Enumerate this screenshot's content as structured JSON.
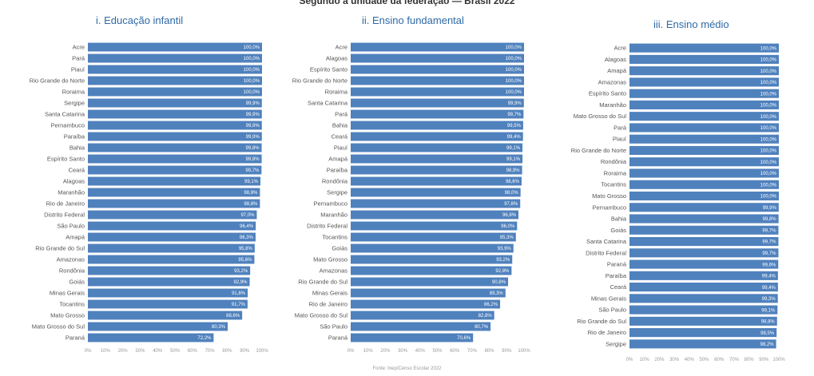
{
  "page": {
    "top_title": "Segundo a unidade da federação — Brasil 2022",
    "footer": "Fonte: Inep/Censo Escolar 2022"
  },
  "colors": {
    "bar": "#4f81bd",
    "label": "#555555",
    "title": "#2f6aa6",
    "value_text": "#ffffff"
  },
  "chart_data": [
    {
      "type": "bar",
      "orientation": "horizontal",
      "title": "i. Educação infantil",
      "xlim": [
        0,
        100
      ],
      "x_ticks": [
        "0%",
        "10%",
        "20%",
        "30%",
        "40%",
        "50%",
        "60%",
        "70%",
        "80%",
        "90%",
        "100%"
      ],
      "categories": [
        "Acre",
        "Pará",
        "Piauí",
        "Rio Grande do Norte",
        "Roraima",
        "Sergipe",
        "Santa Catarina",
        "Pernambuco",
        "Paraíba",
        "Bahia",
        "Espírito Santo",
        "Ceará",
        "Alagoas",
        "Maranhão",
        "Rio de Janeiro",
        "Distrito Federal",
        "São Paulo",
        "Amapá",
        "Rio Grande do Sul",
        "Amazonas",
        "Rondônia",
        "Goiás",
        "Minas Gerais",
        "Tocantins",
        "Mato Grosso",
        "Mato Grosso do Sul",
        "Paraná"
      ],
      "values": [
        100.0,
        100.0,
        100.0,
        100.0,
        100.0,
        99.9,
        99.9,
        99.9,
        99.9,
        99.8,
        99.8,
        99.7,
        99.1,
        98.8,
        98.8,
        97.0,
        96.4,
        96.3,
        95.8,
        95.6,
        93.2,
        92.9,
        91.8,
        91.7,
        88.6,
        80.3,
        72.2
      ],
      "labels": [
        "100,0%",
        "100,0%",
        "100,0%",
        "100,0%",
        "100,0%",
        "99,9%",
        "99,9%",
        "99,9%",
        "99,9%",
        "99,8%",
        "99,8%",
        "99,7%",
        "99,1%",
        "98,8%",
        "98,8%",
        "97,0%",
        "96,4%",
        "96,3%",
        "95,8%",
        "95,6%",
        "93,2%",
        "92,9%",
        "91,8%",
        "91,7%",
        "88,6%",
        "80,3%",
        "72,2%"
      ]
    },
    {
      "type": "bar",
      "orientation": "horizontal",
      "title": "ii. Ensino fundamental",
      "xlim": [
        0,
        100
      ],
      "x_ticks": [
        "0%",
        "10%",
        "20%",
        "30%",
        "40%",
        "50%",
        "60%",
        "70%",
        "80%",
        "90%",
        "100%"
      ],
      "categories": [
        "Acre",
        "Alagoas",
        "Espírito Santo",
        "Rio Grande do Norte",
        "Roraima",
        "Santa Catarina",
        "Pará",
        "Bahia",
        "Ceará",
        "Piauí",
        "Amapá",
        "Paraíba",
        "Rondônia",
        "Sergipe",
        "Pernambuco",
        "Maranhão",
        "Distrito Federal",
        "Tocantins",
        "Goiás",
        "Mato Grosso",
        "Amazonas",
        "Rio Grande do Sul",
        "Minas Gerais",
        "Rio de Janeiro",
        "Mato Grosso do Sul",
        "São Paulo",
        "Paraná"
      ],
      "values": [
        100.0,
        100.0,
        100.0,
        100.0,
        100.0,
        99.9,
        99.7,
        99.5,
        99.4,
        99.1,
        99.1,
        98.9,
        98.6,
        98.0,
        97.8,
        96.8,
        96.0,
        95.3,
        93.9,
        93.2,
        92.8,
        90.8,
        89.3,
        86.2,
        82.8,
        80.7,
        70.6
      ],
      "labels": [
        "100,0%",
        "100,0%",
        "100,0%",
        "100,0%",
        "100,0%",
        "99,9%",
        "99,7%",
        "99,5%",
        "99,4%",
        "99,1%",
        "99,1%",
        "98,9%",
        "98,6%",
        "98,0%",
        "97,8%",
        "96,8%",
        "96,0%",
        "95,3%",
        "93,9%",
        "93,2%",
        "92,8%",
        "90,8%",
        "89,3%",
        "86,2%",
        "82,8%",
        "80,7%",
        "70,6%"
      ]
    },
    {
      "type": "bar",
      "orientation": "horizontal",
      "title": "iii. Ensino médio",
      "xlim": [
        0,
        100
      ],
      "x_ticks": [
        "0%",
        "10%",
        "20%",
        "30%",
        "40%",
        "50%",
        "60%",
        "70%",
        "80%",
        "90%",
        "100%"
      ],
      "categories": [
        "Acre",
        "Alagoas",
        "Amapá",
        "Amazonas",
        "Espírito Santo",
        "Maranhão",
        "Mato Grosso do Sul",
        "Pará",
        "Piauí",
        "Rio Grande do Norte",
        "Rondônia",
        "Roraima",
        "Tocantins",
        "Mato Grosso",
        "Pernambuco",
        "Bahia",
        "Goiás",
        "Santa Catarina",
        "Distrito Federal",
        "Paraná",
        "Paraíba",
        "Ceará",
        "Minas Gerais",
        "São Paulo",
        "Rio Grande do Sul",
        "Rio de Janeiro",
        "Sergipe"
      ],
      "values": [
        100.0,
        100.0,
        100.0,
        100.0,
        100.0,
        100.0,
        100.0,
        100.0,
        100.0,
        100.0,
        100.0,
        100.0,
        100.0,
        100.0,
        99.9,
        99.8,
        99.7,
        99.7,
        99.7,
        99.6,
        99.4,
        99.4,
        99.3,
        99.1,
        98.8,
        98.5,
        98.2
      ],
      "labels": [
        "100,0%",
        "100,0%",
        "100,0%",
        "100,0%",
        "100,0%",
        "100,0%",
        "100,0%",
        "100,0%",
        "100,0%",
        "100,0%",
        "100,0%",
        "100,0%",
        "100,0%",
        "100,0%",
        "99,9%",
        "99,8%",
        "99,7%",
        "99,7%",
        "99,7%",
        "99,6%",
        "99,4%",
        "99,4%",
        "99,3%",
        "99,1%",
        "98,8%",
        "98,5%",
        "98,2%"
      ]
    }
  ]
}
